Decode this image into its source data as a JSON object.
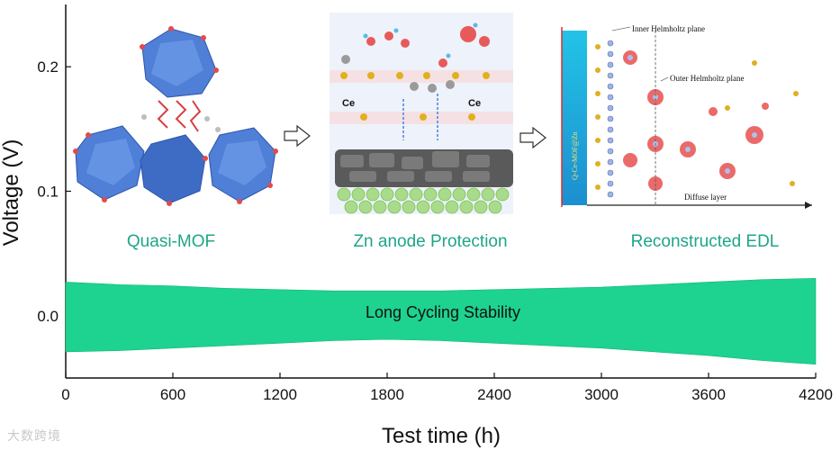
{
  "chart_data": {
    "type": "area",
    "title": "",
    "xlabel": "Test time (h)",
    "ylabel": "Voltage (V)",
    "xlim": [
      0,
      4200
    ],
    "ylim": [
      -0.05,
      0.25
    ],
    "xticks": [
      0,
      600,
      1200,
      1800,
      2400,
      3000,
      3600,
      4200
    ],
    "yticks": [
      0.0,
      0.1,
      0.2
    ],
    "ytick_labels": [
      "0.0",
      "0.1",
      "0.2"
    ],
    "grid": false,
    "color": "#1ed28f",
    "series": [
      {
        "name": "Long Cycling Stability",
        "x": [
          0,
          300,
          600,
          900,
          1200,
          1500,
          1800,
          2100,
          2400,
          2700,
          3000,
          3300,
          3600,
          3900,
          4200
        ],
        "upper": [
          0.027,
          0.025,
          0.024,
          0.022,
          0.021,
          0.02,
          0.02,
          0.02,
          0.021,
          0.022,
          0.023,
          0.025,
          0.027,
          0.029,
          0.03
        ],
        "lower": [
          -0.029,
          -0.028,
          -0.026,
          -0.024,
          -0.022,
          -0.02,
          -0.019,
          -0.02,
          -0.022,
          -0.024,
          -0.026,
          -0.029,
          -0.032,
          -0.036,
          -0.039
        ]
      }
    ],
    "annotations": {
      "band_label": "Long Cycling Stability",
      "caption_mof": "Quasi-MOF",
      "caption_anode": "Zn anode Protection",
      "caption_edl": "Reconstructed EDL",
      "ce_label": "Ce",
      "inner_plane": "Inner Helmholtz plane",
      "outer_plane": "Outer Helmholtz plane",
      "diffuse_layer": "Diffuse layer",
      "electrode_label": "Q-Ce-MOF@Zn"
    }
  },
  "watermark": "大数跨境"
}
